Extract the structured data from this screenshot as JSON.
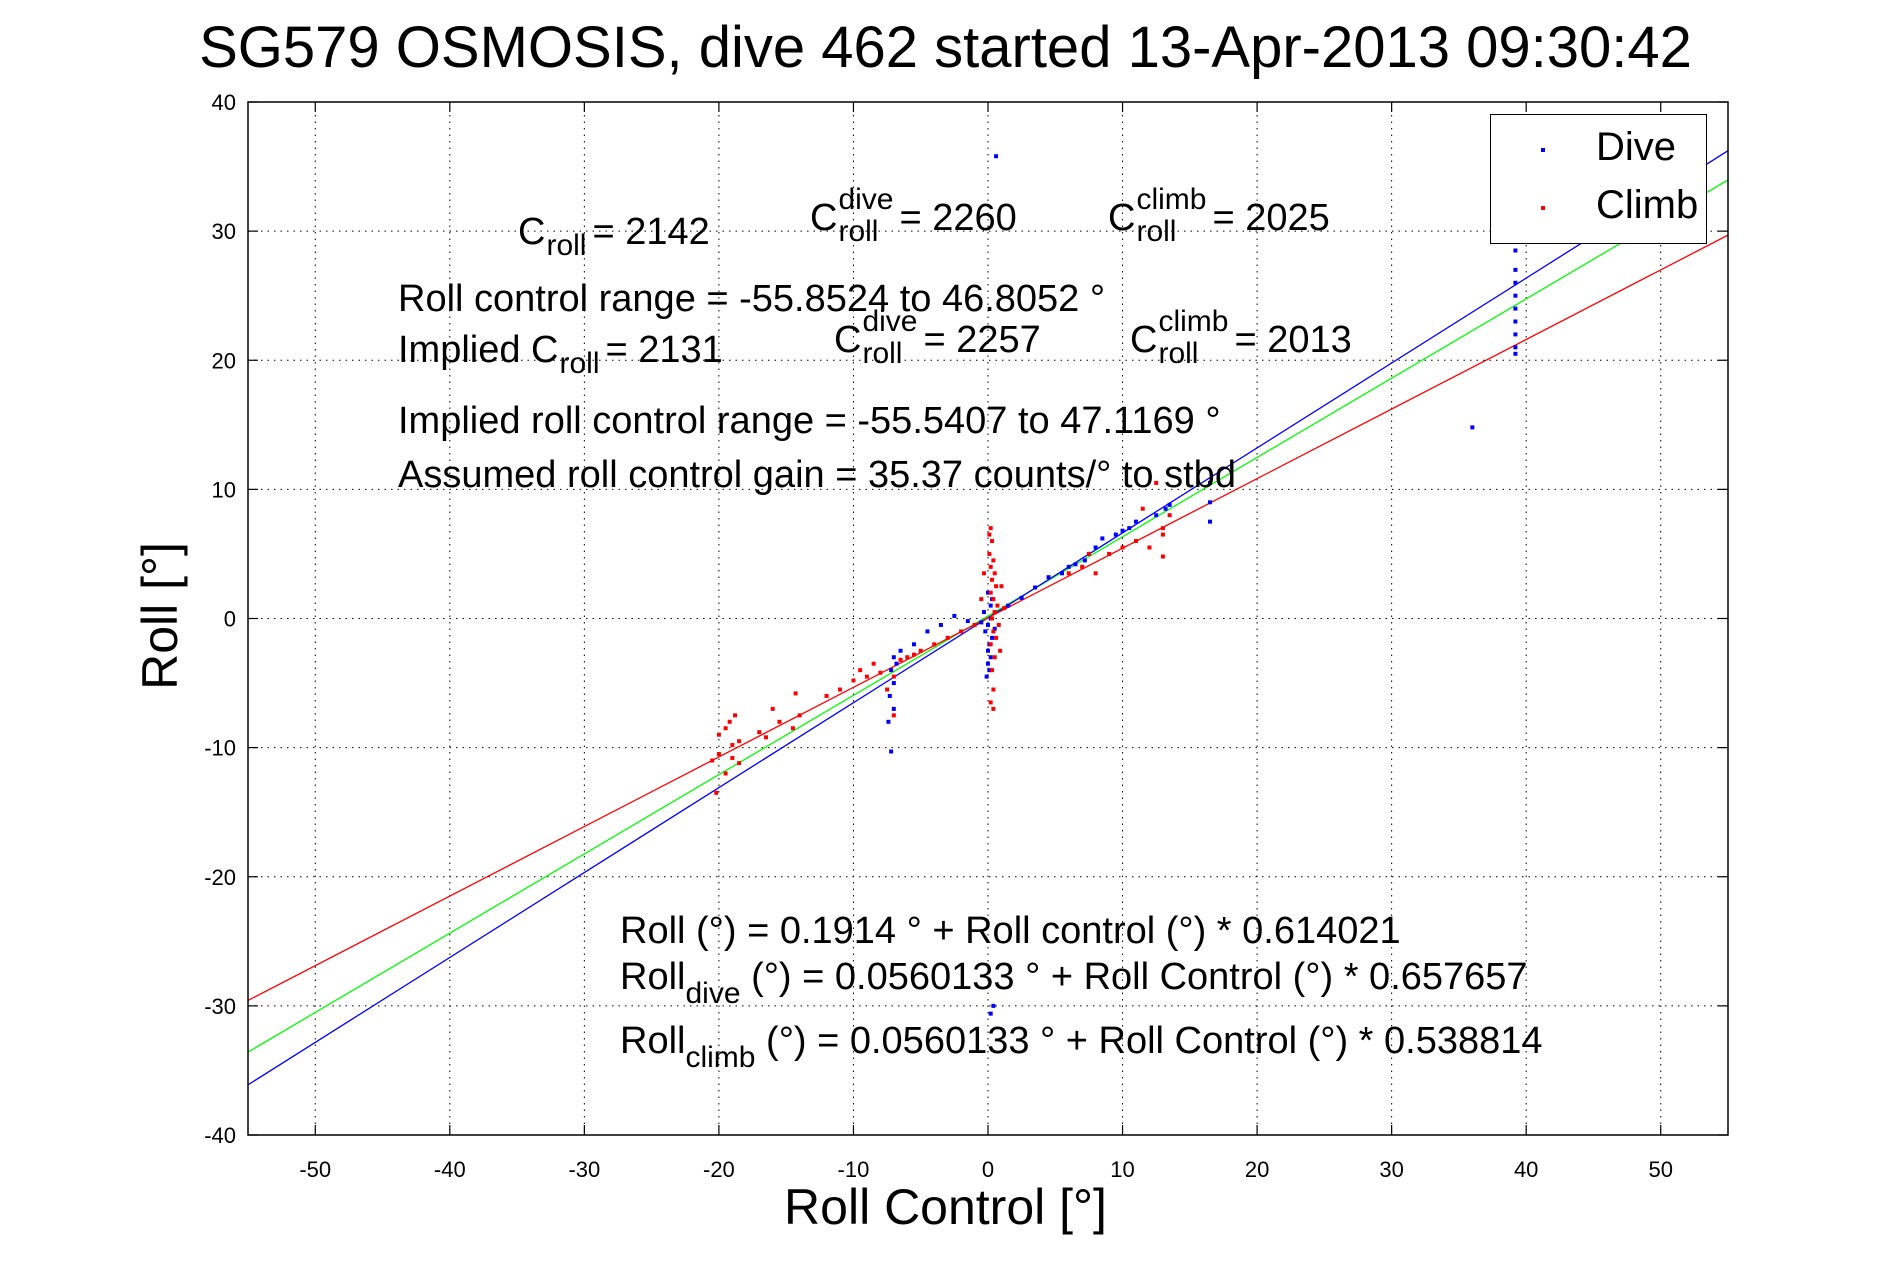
{
  "chart_data": {
    "type": "scatter",
    "title": "SG579 OSMOSIS, dive 462 started 13-Apr-2013 09:30:42",
    "xlabel": "Roll Control [°]",
    "ylabel": "Roll [°]",
    "xlim": [
      -55,
      55
    ],
    "ylim": [
      -40,
      40
    ],
    "xticks": [
      -50,
      -40,
      -30,
      -20,
      -10,
      0,
      10,
      20,
      30,
      40,
      50
    ],
    "yticks": [
      -40,
      -30,
      -20,
      -10,
      0,
      10,
      20,
      30,
      40
    ],
    "grid": true,
    "legend_position": "top-right",
    "series": [
      {
        "name": "Dive",
        "color": "#0000ff",
        "points": [
          [
            39.2,
            34.0
          ],
          [
            39.2,
            32.0
          ],
          [
            39.2,
            30.0
          ],
          [
            39.2,
            28.5
          ],
          [
            39.2,
            27.0
          ],
          [
            39.2,
            26.0
          ],
          [
            39.2,
            25.0
          ],
          [
            39.2,
            24.0
          ],
          [
            39.2,
            23.0
          ],
          [
            39.2,
            22.0
          ],
          [
            39.2,
            21.0
          ],
          [
            39.2,
            20.5
          ],
          [
            36.0,
            14.8
          ],
          [
            0.6,
            35.8
          ],
          [
            16.5,
            10.5
          ],
          [
            16.5,
            9.0
          ],
          [
            16.5,
            7.5
          ],
          [
            13.5,
            8.8
          ],
          [
            13.2,
            8.5
          ],
          [
            12.5,
            8.0
          ],
          [
            11.0,
            7.5
          ],
          [
            10.5,
            7.0
          ],
          [
            10.0,
            6.8
          ],
          [
            9.5,
            6.5
          ],
          [
            8.5,
            6.2
          ],
          [
            8.0,
            5.5
          ],
          [
            7.5,
            5.0
          ],
          [
            7.2,
            4.5
          ],
          [
            6.5,
            4.2
          ],
          [
            6.0,
            4.0
          ],
          [
            5.5,
            3.5
          ],
          [
            4.5,
            3.2
          ],
          [
            3.5,
            2.4
          ],
          [
            2.5,
            1.6
          ],
          [
            1.5,
            1.0
          ],
          [
            0.5,
            0.5
          ],
          [
            0.2,
            0.0
          ],
          [
            0.0,
            -0.5
          ],
          [
            -0.2,
            -1.0
          ],
          [
            0.3,
            -1.5
          ],
          [
            0.1,
            -2.0
          ],
          [
            0.0,
            -2.5
          ],
          [
            0.2,
            -3.0
          ],
          [
            0.0,
            -3.5
          ],
          [
            0.1,
            -4.0
          ],
          [
            -0.1,
            -4.5
          ],
          [
            0.2,
            1.0
          ],
          [
            0.3,
            1.5
          ],
          [
            0.0,
            2.0
          ],
          [
            -0.3,
            0.5
          ],
          [
            -0.5,
            -0.3
          ],
          [
            0.5,
            -0.8
          ],
          [
            0.2,
            -30.6
          ],
          [
            0.4,
            -30.0
          ],
          [
            -3.5,
            -0.5
          ],
          [
            -4.5,
            -1.0
          ],
          [
            -5.5,
            -2.0
          ],
          [
            -6.5,
            -2.5
          ],
          [
            -7.0,
            -3.0
          ],
          [
            -7.2,
            -4.0
          ],
          [
            -7.0,
            -5.0
          ],
          [
            -7.3,
            -6.0
          ],
          [
            -7.0,
            -7.0
          ],
          [
            -7.2,
            -10.3
          ],
          [
            -7.4,
            -8.0
          ],
          [
            -6.8,
            -3.5
          ],
          [
            -2.5,
            0.2
          ],
          [
            -1.5,
            -0.2
          ]
        ]
      },
      {
        "name": "Climb",
        "color": "#ff0000",
        "points": [
          [
            0.2,
            7.0
          ],
          [
            0.3,
            6.0
          ],
          [
            0.1,
            5.0
          ],
          [
            0.4,
            4.5
          ],
          [
            0.2,
            4.0
          ],
          [
            0.5,
            3.5
          ],
          [
            0.3,
            3.0
          ],
          [
            0.6,
            2.5
          ],
          [
            0.2,
            2.0
          ],
          [
            0.4,
            1.5
          ],
          [
            0.7,
            1.0
          ],
          [
            0.5,
            0.5
          ],
          [
            0.3,
            0.0
          ],
          [
            0.8,
            -0.5
          ],
          [
            0.4,
            -1.0
          ],
          [
            0.6,
            -1.5
          ],
          [
            0.2,
            -2.0
          ],
          [
            0.5,
            -3.0
          ],
          [
            0.3,
            -4.0
          ],
          [
            0.4,
            -5.5
          ],
          [
            0.2,
            -6.5
          ],
          [
            0.4,
            -7.0
          ],
          [
            1.0,
            2.5
          ],
          [
            1.2,
            0.8
          ],
          [
            -0.5,
            1.5
          ],
          [
            -0.3,
            3.5
          ],
          [
            0.9,
            -2.5
          ],
          [
            0.1,
            6.5
          ],
          [
            -20.0,
            -9.0
          ],
          [
            -20.0,
            -10.5
          ],
          [
            -20.5,
            -11.0
          ],
          [
            -19.5,
            -8.5
          ],
          [
            -19.0,
            -9.8
          ],
          [
            -19.0,
            -10.8
          ],
          [
            -18.5,
            -11.2
          ],
          [
            -18.5,
            -9.5
          ],
          [
            -19.5,
            -12.0
          ],
          [
            -20.2,
            -13.5
          ],
          [
            -19.2,
            -8.0
          ],
          [
            -18.8,
            -7.5
          ],
          [
            -17.0,
            -8.8
          ],
          [
            -16.5,
            -9.2
          ],
          [
            -16.0,
            -7.0
          ],
          [
            -15.5,
            -8.0
          ],
          [
            -14.5,
            -8.5
          ],
          [
            -14.0,
            -7.5
          ],
          [
            -14.3,
            -5.8
          ],
          [
            -12.0,
            -6.0
          ],
          [
            -11.0,
            -5.5
          ],
          [
            -10.0,
            -4.8
          ],
          [
            -9.5,
            -4.0
          ],
          [
            -9.0,
            -4.5
          ],
          [
            -8.5,
            -3.5
          ],
          [
            -8.0,
            -4.2
          ],
          [
            -7.5,
            -5.5
          ],
          [
            -7.0,
            -4.5
          ],
          [
            -6.5,
            -3.2
          ],
          [
            -6.0,
            -3.0
          ],
          [
            -5.5,
            -2.8
          ],
          [
            -5.0,
            -2.5
          ],
          [
            -4.0,
            -2.0
          ],
          [
            -3.0,
            -1.5
          ],
          [
            -2.0,
            -1.0
          ],
          [
            -1.0,
            -0.5
          ],
          [
            6.0,
            3.5
          ],
          [
            7.0,
            4.0
          ],
          [
            7.5,
            5.0
          ],
          [
            8.0,
            3.5
          ],
          [
            9.0,
            5.0
          ],
          [
            10.0,
            5.5
          ],
          [
            11.0,
            6.0
          ],
          [
            11.5,
            8.5
          ],
          [
            12.5,
            10.5
          ],
          [
            13.0,
            7.0
          ],
          [
            13.0,
            6.5
          ],
          [
            13.0,
            4.8
          ],
          [
            13.5,
            8.0
          ],
          [
            12.0,
            5.5
          ],
          [
            -7.0,
            -7.5
          ]
        ]
      }
    ],
    "fit_lines": [
      {
        "name": "all",
        "color": "#00ff00",
        "intercept": 0.1914,
        "slope": 0.614021
      },
      {
        "name": "dive",
        "color": "#0000ff",
        "intercept": 0.0560133,
        "slope": 0.657657
      },
      {
        "name": "climb",
        "color": "#ff0000",
        "intercept": 0.0560133,
        "slope": 0.538814
      }
    ]
  },
  "legend": {
    "dive": "Dive",
    "climb": "Climb"
  },
  "annotations": {
    "c_symbol": "C",
    "roll_sub": "roll",
    "dive_sup": "dive",
    "climb_sup": "climb",
    "c_roll_val": "= 2142",
    "c_roll_dive_val": "= 2260",
    "c_roll_climb_val": "= 2025",
    "roll_control_range": "Roll control range = -55.8524 to 46.8052 °",
    "implied_prefix": "Implied C",
    "implied_c_roll_val": "= 2131",
    "implied_c_dive_val": "= 2257",
    "implied_c_climb_val": "= 2013",
    "implied_range": "Implied roll control range = -55.5407 to 47.1169 °",
    "assumed_gain": "Assumed roll control gain = 35.37 counts/° to stbd",
    "fit_all": "Roll (°) = 0.1914 ° + Roll control (°) * 0.614021",
    "roll_word": "Roll",
    "dive_sub": "dive",
    "climb_sub": "climb",
    "fit_dive_rest": " (°) = 0.0560133 ° + Roll Control (°) * 0.657657",
    "fit_climb_rest": " (°) = 0.0560133 ° + Roll Control (°) * 0.538814"
  }
}
